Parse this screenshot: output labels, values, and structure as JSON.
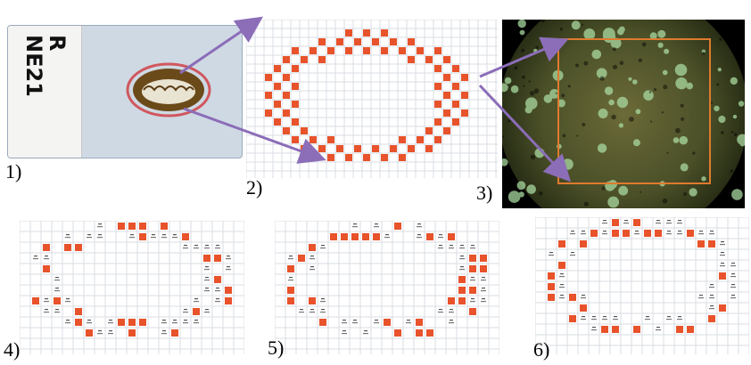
{
  "panels": [
    {
      "id": "1",
      "label": "1)"
    },
    {
      "id": "2",
      "label": "2)"
    },
    {
      "id": "3",
      "label": "3)"
    },
    {
      "id": "4",
      "label": "4)"
    },
    {
      "id": "5",
      "label": "5)"
    },
    {
      "id": "6",
      "label": "6)"
    }
  ],
  "slide": {
    "handwriting_line1": "R",
    "handwriting_line2": "NE21"
  },
  "colors": {
    "sample_square": "#e8532b",
    "grid_line": "#d9dde3",
    "arrow": "#8b6db8",
    "sample_outline": "#d0575d",
    "micro_roi": "#e07a2e",
    "slide_glass": "#cfd9e4"
  }
}
